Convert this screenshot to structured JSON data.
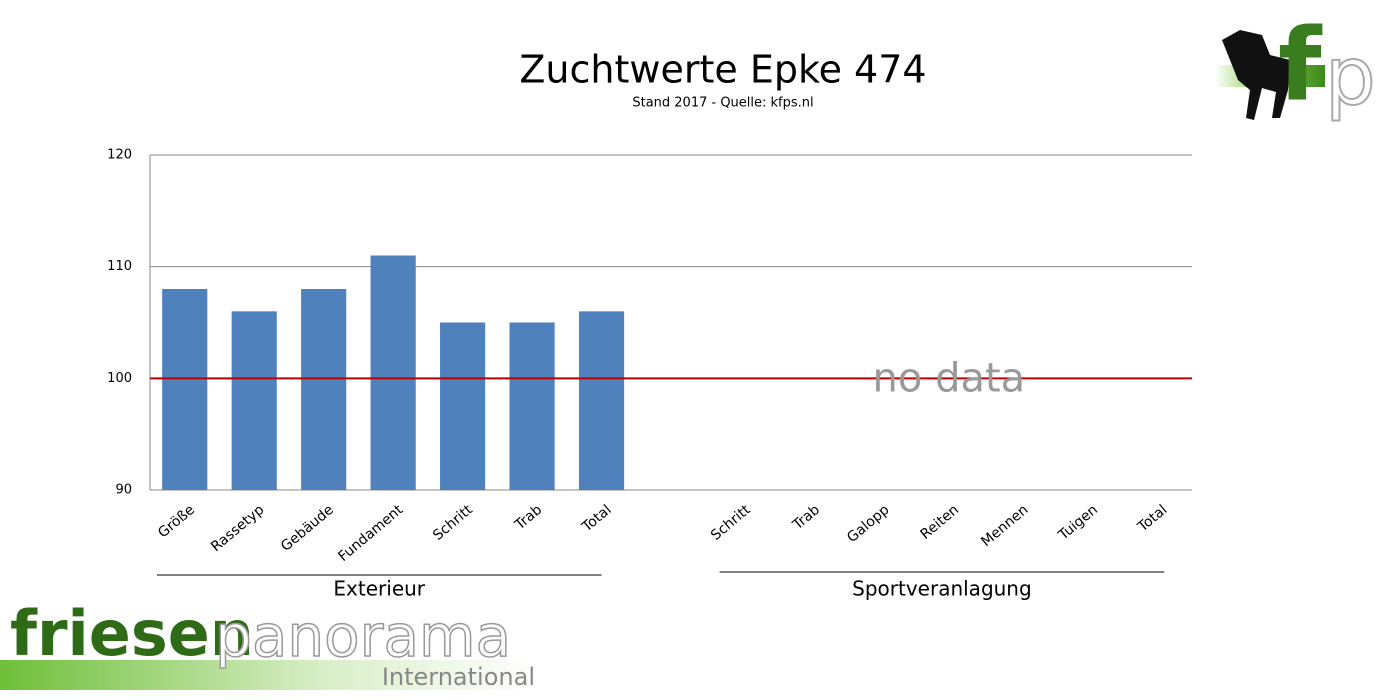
{
  "chart_data": {
    "type": "bar",
    "title": "Zuchtwerte Epke 474",
    "subtitle": "Stand 2017 - Quelle: kfps.nl",
    "categories": [
      "Größe",
      "Rassetyp",
      "Gebäude",
      "Fundament",
      "Schritt",
      "Trab",
      "Total",
      null,
      "Schritt",
      "Trab",
      "Galopp",
      "Reiten",
      "Mennen",
      "Tuigen",
      "Total"
    ],
    "values": [
      108,
      106,
      108,
      111,
      105,
      105,
      106,
      null,
      null,
      null,
      null,
      null,
      null,
      null,
      null
    ],
    "color": "#4f81bd",
    "ylim": [
      90,
      120
    ],
    "yticks": [
      90,
      100,
      110,
      120
    ],
    "grid": true,
    "reference_line": {
      "value": 100,
      "color": "#c00000"
    },
    "annotation": "no data",
    "group_labels": [
      "Exterieur",
      "Sportveranlagung"
    ]
  },
  "branding": {
    "corner_logo": [
      "f",
      "p"
    ],
    "logo": [
      "friesen",
      "panorama"
    ],
    "logo_sub": "International"
  }
}
